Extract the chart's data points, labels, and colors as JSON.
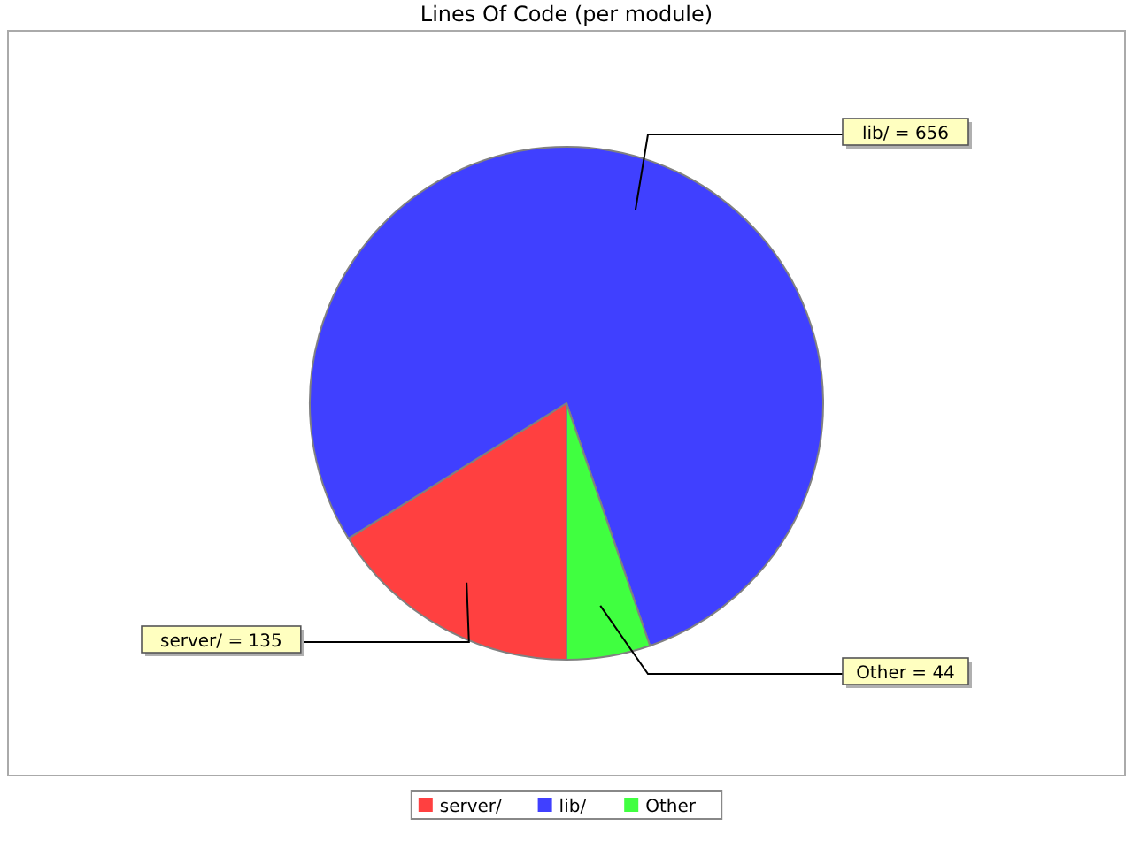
{
  "chart_data": {
    "type": "pie",
    "title": "Lines Of Code (per module)",
    "categories": [
      "server/",
      "lib/",
      "Other"
    ],
    "values": [
      135,
      656,
      44
    ],
    "colors": [
      "#ff4040",
      "#4040ff",
      "#40ff40"
    ],
    "value_labels": [
      "server/ = 135",
      "lib/ = 656",
      "Other = 44"
    ],
    "legend": "bottom"
  }
}
